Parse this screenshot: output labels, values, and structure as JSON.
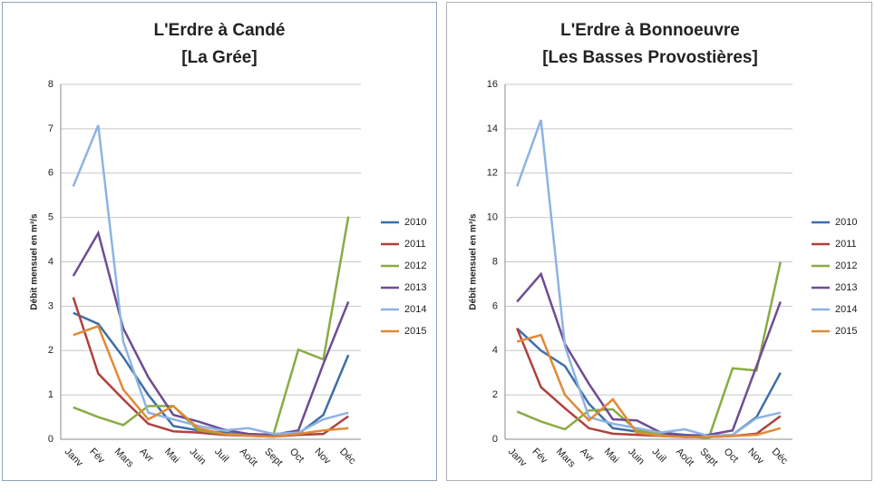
{
  "chart_data": [
    {
      "type": "line",
      "title": [
        "L'Erdre à Candé",
        "[La Grée]"
      ],
      "y_label": "Débit mensuel en m³/s",
      "categories": [
        "Janv",
        "Fév",
        "Mars",
        "Avr",
        "Mai",
        "Juin",
        "Juil",
        "Août",
        "Sept",
        "Oct",
        "Nov",
        "Déc"
      ],
      "ylim": [
        0,
        8
      ],
      "yticks": [
        0,
        1,
        2,
        3,
        4,
        5,
        6,
        7,
        8
      ],
      "grid": true,
      "legend": "right",
      "series": [
        {
          "name": "2010",
          "color": "#3e6ea6",
          "values": [
            2.85,
            2.6,
            1.85,
            1.0,
            0.3,
            0.2,
            0.15,
            0.1,
            0.08,
            0.12,
            0.55,
            1.9
          ]
        },
        {
          "name": "2011",
          "color": "#b0413e",
          "values": [
            3.2,
            1.48,
            0.9,
            0.35,
            0.18,
            0.15,
            0.1,
            0.08,
            0.06,
            0.1,
            0.12,
            0.52
          ]
        },
        {
          "name": "2012",
          "color": "#8aab44",
          "values": [
            0.72,
            0.5,
            0.32,
            0.75,
            0.75,
            0.2,
            0.12,
            0.1,
            0.1,
            2.02,
            1.8,
            5.02
          ]
        },
        {
          "name": "2013",
          "color": "#6f4c93",
          "values": [
            3.68,
            4.65,
            2.5,
            1.4,
            0.55,
            0.4,
            0.22,
            0.12,
            0.1,
            0.2,
            1.7,
            3.1
          ]
        },
        {
          "name": "2014",
          "color": "#8db3e2",
          "values": [
            5.7,
            7.08,
            2.2,
            0.6,
            0.45,
            0.3,
            0.2,
            0.25,
            0.12,
            0.15,
            0.45,
            0.6
          ]
        },
        {
          "name": "2015",
          "color": "#e08a36",
          "values": [
            2.35,
            2.55,
            1.12,
            0.45,
            0.75,
            0.25,
            0.12,
            0.08,
            0.06,
            0.12,
            0.2,
            0.25
          ]
        }
      ]
    },
    {
      "type": "line",
      "title": [
        "L'Erdre à Bonnoeuvre",
        "[Les Basses Provostières]"
      ],
      "y_label": "Débit mensuel en m³/s",
      "categories": [
        "Janv",
        "Fév",
        "Mars",
        "Avr",
        "Mai",
        "Juin",
        "Juil",
        "Août",
        "Sept",
        "Oct",
        "Nov",
        "Déc"
      ],
      "ylim": [
        0,
        16
      ],
      "yticks": [
        0,
        2,
        4,
        6,
        8,
        10,
        12,
        14,
        16
      ],
      "grid": true,
      "legend": "right",
      "series": [
        {
          "name": "2010",
          "color": "#3e6ea6",
          "values": [
            5.0,
            4.0,
            3.3,
            1.6,
            0.5,
            0.35,
            0.3,
            0.2,
            0.15,
            0.2,
            1.0,
            3.0
          ]
        },
        {
          "name": "2011",
          "color": "#b0413e",
          "values": [
            5.0,
            2.35,
            1.4,
            0.5,
            0.25,
            0.2,
            0.15,
            0.1,
            0.1,
            0.15,
            0.25,
            1.05
          ]
        },
        {
          "name": "2012",
          "color": "#8aab44",
          "values": [
            1.25,
            0.8,
            0.45,
            1.3,
            1.35,
            0.4,
            0.25,
            0.15,
            0.05,
            3.2,
            3.1,
            8.0
          ]
        },
        {
          "name": "2013",
          "color": "#6f4c93",
          "values": [
            6.2,
            7.45,
            4.3,
            2.5,
            0.9,
            0.85,
            0.3,
            0.15,
            0.2,
            0.4,
            3.3,
            6.2
          ]
        },
        {
          "name": "2014",
          "color": "#8db3e2",
          "values": [
            11.4,
            14.4,
            4.2,
            1.0,
            0.7,
            0.5,
            0.3,
            0.45,
            0.15,
            0.2,
            0.95,
            1.2
          ]
        },
        {
          "name": "2015",
          "color": "#e08a36",
          "values": [
            4.4,
            4.7,
            2.0,
            0.85,
            1.8,
            0.3,
            0.15,
            0.1,
            0.1,
            0.15,
            0.2,
            0.5
          ]
        }
      ]
    }
  ]
}
